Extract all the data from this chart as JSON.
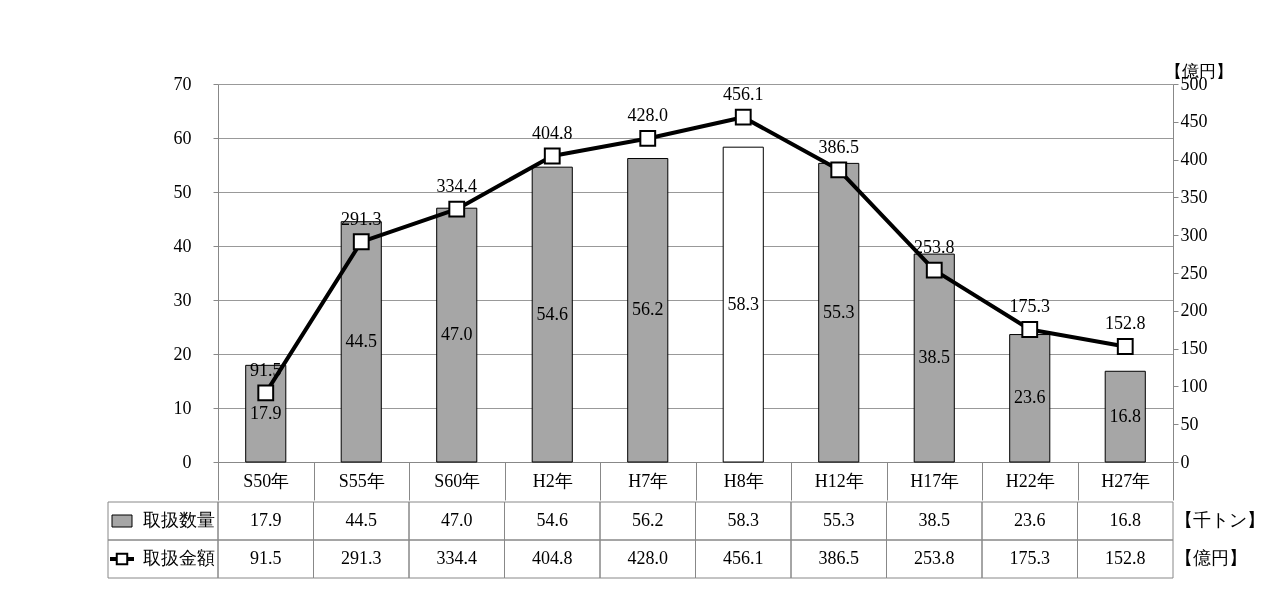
{
  "chart_data": {
    "type": "bar",
    "categories": [
      "S50年",
      "S55年",
      "S60年",
      "H2年",
      "H7年",
      "H8年",
      "H12年",
      "H17年",
      "H22年",
      "H27年"
    ],
    "series": [
      {
        "name": "取扱数量",
        "type": "bar",
        "colors": [
          "#a6a6a6",
          "#a6a6a6",
          "#a6a6a6",
          "#a6a6a6",
          "#a6a6a6",
          "#ffffff",
          "#a6a6a6",
          "#a6a6a6",
          "#a6a6a6",
          "#a6a6a6"
        ],
        "values": [
          17.9,
          44.5,
          47.0,
          54.6,
          56.2,
          58.3,
          55.3,
          38.5,
          23.6,
          16.8
        ],
        "value_labels": [
          "17.9",
          "44.5",
          "47.0",
          "54.6",
          "56.2",
          "58.3",
          "55.3",
          "38.5",
          "23.6",
          "16.8"
        ]
      },
      {
        "name": "取扱金額",
        "type": "line",
        "axis": "y2",
        "color": "#000000",
        "values": [
          91.5,
          291.3,
          334.4,
          404.8,
          428.0,
          456.1,
          386.5,
          253.8,
          175.3,
          152.8
        ],
        "value_labels": [
          "91.5",
          "291.3",
          "334.4",
          "404.8",
          "428.0",
          "456.1",
          "386.5",
          "253.8",
          "175.3",
          "152.8"
        ]
      }
    ],
    "ylim": [
      0,
      70
    ],
    "yticks": [
      0,
      10,
      20,
      30,
      40,
      50,
      60,
      70
    ],
    "y2lim": [
      0,
      500
    ],
    "y2ticks": [
      0,
      50,
      100,
      150,
      200,
      250,
      300,
      350,
      400,
      450,
      500
    ],
    "y2label": "【億円】",
    "grid": "y",
    "marker": "square",
    "line_style": "solid",
    "legend": "bottom",
    "annotations": [
      "【千トン】",
      "【億円】"
    ]
  }
}
